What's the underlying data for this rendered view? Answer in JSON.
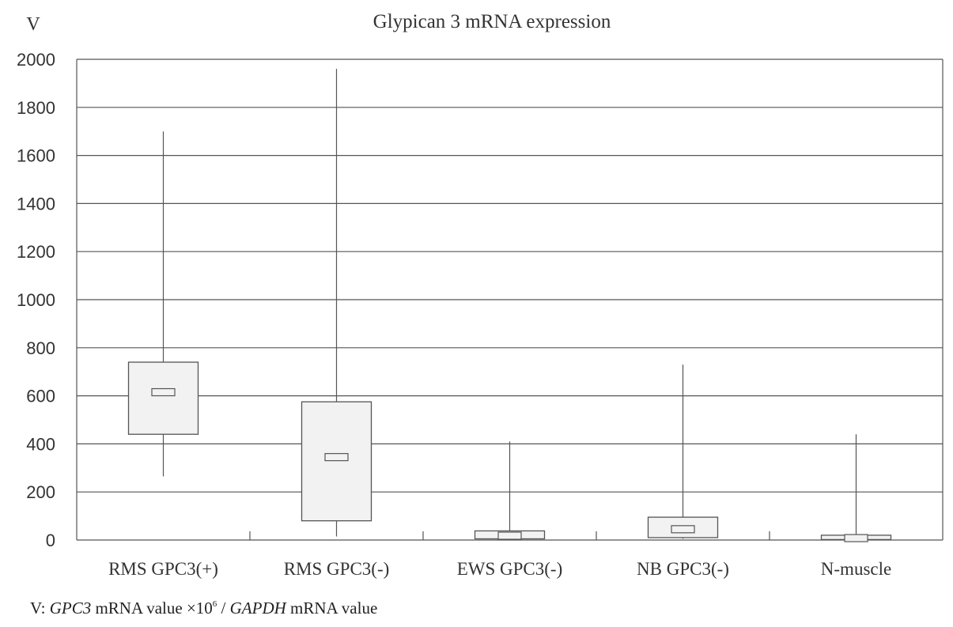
{
  "chart_data": {
    "type": "box",
    "title": "Glypican 3 mRNA expression",
    "ylabel": "V",
    "xlabel": "",
    "ylim": [
      0,
      2000
    ],
    "yticks": [
      0,
      200,
      400,
      600,
      800,
      1000,
      1200,
      1400,
      1600,
      1800,
      2000
    ],
    "grid": true,
    "categories": [
      "RMS GPC3(+)",
      "RMS GPC3(-)",
      "EWS GPC3(-)",
      "NB GPC3(-)",
      "N-muscle"
    ],
    "boxes": [
      {
        "category": "RMS GPC3(+)",
        "min": 265,
        "q1": 440,
        "median": 615,
        "q3": 740,
        "max": 1700
      },
      {
        "category": "RMS GPC3(-)",
        "min": 15,
        "q1": 80,
        "median": 345,
        "q3": 575,
        "max": 1960
      },
      {
        "category": "EWS GPC3(-)",
        "min": 2,
        "q1": 5,
        "median": 18,
        "q3": 38,
        "max": 410
      },
      {
        "category": "NB GPC3(-)",
        "min": 5,
        "q1": 10,
        "median": 45,
        "q3": 95,
        "max": 730
      },
      {
        "category": "N-muscle",
        "min": 0,
        "q1": 2,
        "median": 8,
        "q3": 20,
        "max": 440
      }
    ]
  },
  "footnote": {
    "prefix": "V: ",
    "gene": "GPC3",
    "middle": " mRNA value ×10",
    "exponent": "6",
    "slash": " / ",
    "reference_gene": "GAPDH",
    "suffix": " mRNA value"
  },
  "colors": {
    "box_fill": "#f2f2f2",
    "stroke": "#555555",
    "grid": "#555555"
  }
}
